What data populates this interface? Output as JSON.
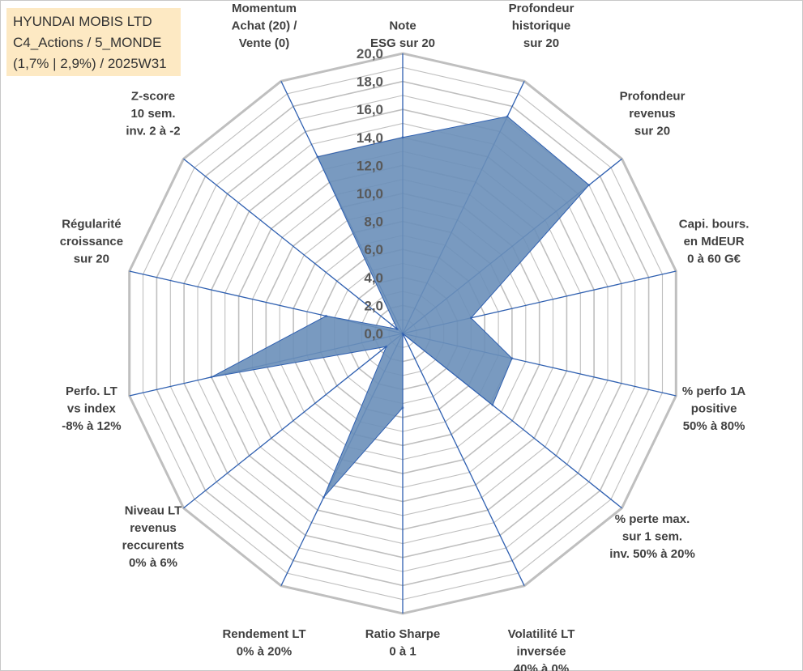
{
  "header": {
    "line1": "HYUNDAI MOBIS LTD",
    "line2": "C4_Actions / 5_MONDE",
    "line3": "(1,7% | 2,9%) / 2025W31"
  },
  "chart_data": {
    "type": "radar",
    "title": "HYUNDAI MOBIS LTD",
    "rmin": 0,
    "rmax": 20,
    "ticks": [
      "0,0",
      "2,0",
      "4,0",
      "6,0",
      "8,0",
      "10,0",
      "12,0",
      "14,0",
      "16,0",
      "18,0",
      "20,0"
    ],
    "tick_values": [
      0,
      2,
      4,
      6,
      8,
      10,
      12,
      14,
      16,
      18,
      20
    ],
    "fill_color": "#6a8fb9",
    "line_color": "#2e5fb0",
    "grid_color": "#bfbfbf",
    "axes": [
      {
        "label": [
          "Note",
          "ESG sur 20"
        ],
        "value": 14.0
      },
      {
        "label": [
          "Profondeur",
          "historique",
          "sur 20"
        ],
        "value": 17.2
      },
      {
        "label": [
          "Profondeur",
          "revenus",
          "sur 20"
        ],
        "value": 17.0
      },
      {
        "label": [
          "Capi. bours.",
          "en MdEUR",
          "0 à 60 G€"
        ],
        "value": 5.0
      },
      {
        "label": [
          "% perfo 1A",
          "positive",
          "50% à 80%"
        ],
        "value": 8.0
      },
      {
        "label": [
          "% perte max.",
          "sur 1 sem.",
          "inv. 50% à 20%"
        ],
        "value": 8.2
      },
      {
        "label": [
          "Volatilité LT",
          "inversée",
          "40% à 0%"
        ],
        "value": 0.0
      },
      {
        "label": [
          "Ratio Sharpe",
          "0 à 1"
        ],
        "value": 5.3
      },
      {
        "label": [
          "Rendement LT",
          "0% à 20%"
        ],
        "value": 13.0
      },
      {
        "label": [
          "Niveau LT",
          "revenus",
          "reccurents",
          "0% à 6%"
        ],
        "value": 1.5
      },
      {
        "label": [
          "Perfo. LT",
          "vs index",
          "-8% à 12%"
        ],
        "value": 14.0
      },
      {
        "label": [
          "Régularité",
          "croissance",
          "sur 20"
        ],
        "value": 5.6
      },
      {
        "label": [
          "Z-score",
          "10 sem.",
          "inv. 2 à -2"
        ],
        "value": 0.5
      },
      {
        "label": [
          "Momentum",
          "Achat (20) /",
          "Vente (0)"
        ],
        "value": 14.0
      }
    ]
  }
}
